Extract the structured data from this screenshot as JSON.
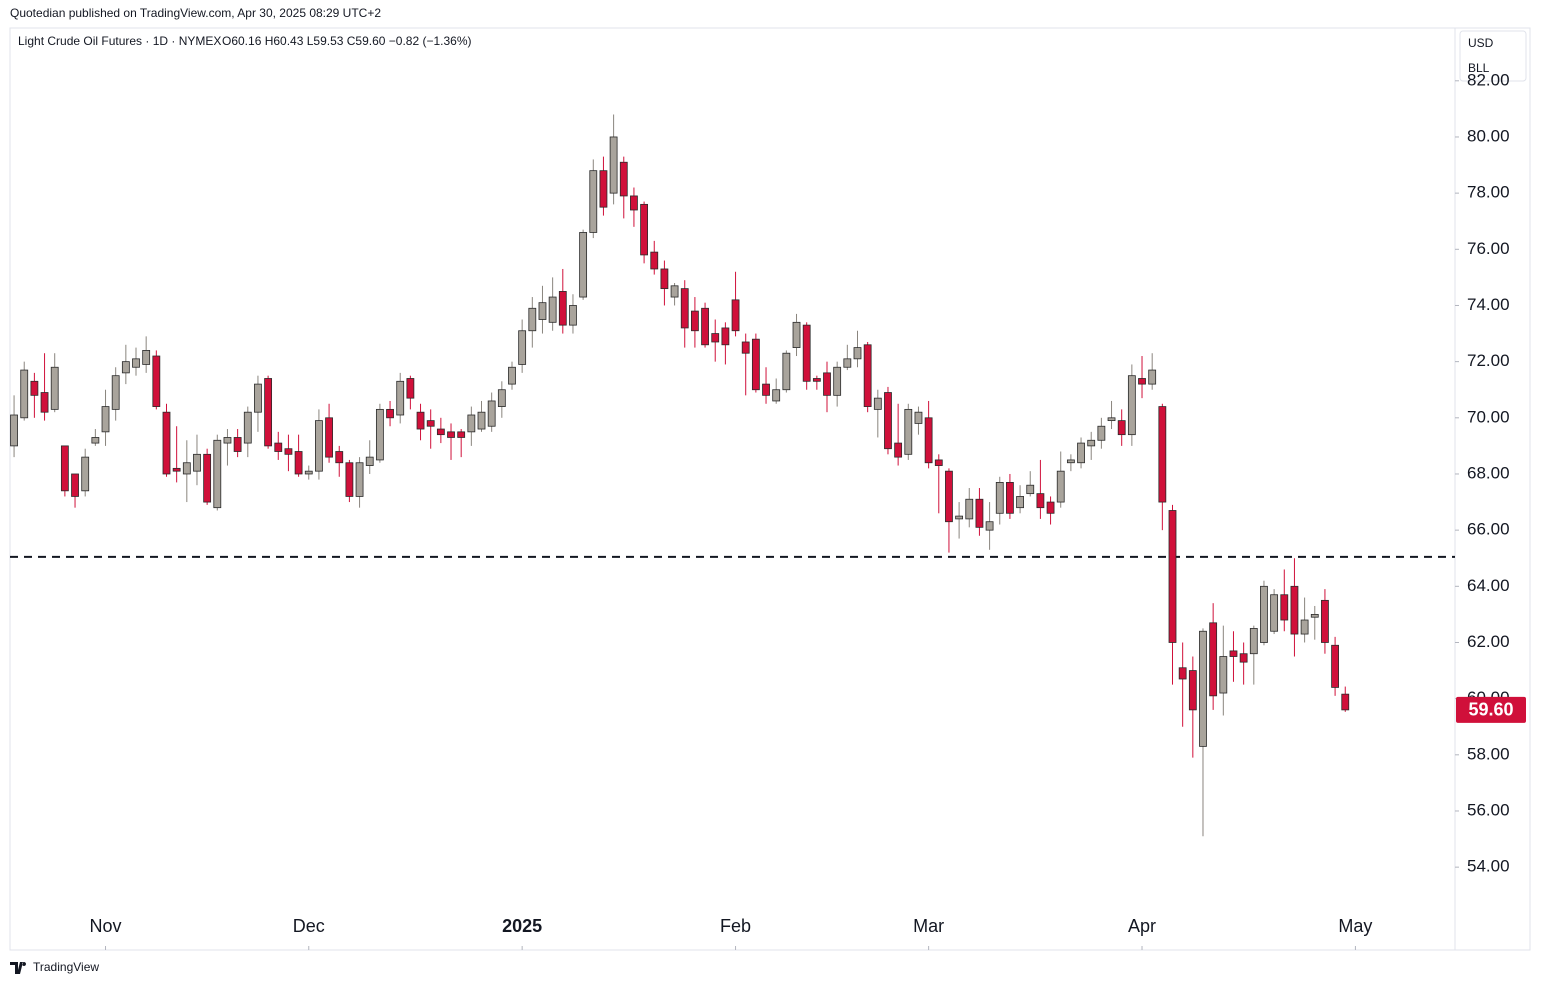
{
  "header": {
    "publisher": "Quotedian published on TradingView.com, Apr 30, 2025 08:29 UTC+2",
    "footer": "TradingView"
  },
  "chart_data": {
    "type": "candlestick",
    "title": "Light Crude Oil Futures · 1D · NYMEX",
    "ohlc_readout": "O60.16 H60.43 L59.53 C59.60 −0.82 (−1.36%)",
    "legend": [
      "USD",
      "BLL"
    ],
    "last_price_label": "59.60",
    "up_color": "#a9a49c",
    "down_color": "#d0103a",
    "border_color": "#2a2a2a",
    "xlim": [
      -0.4,
      141.8
    ],
    "xticks": [
      {
        "value": 9,
        "label": "Nov"
      },
      {
        "value": 29,
        "label": "Dec"
      },
      {
        "value": 50,
        "label": "2025"
      },
      {
        "value": 71,
        "label": "Feb"
      },
      {
        "value": 90,
        "label": "Mar"
      },
      {
        "value": 111,
        "label": "Apr"
      },
      {
        "value": 132,
        "label": "May"
      }
    ],
    "ylim": [
      51.05,
      83.88
    ],
    "yticks": [
      {
        "value": 54,
        "label": "54.00"
      },
      {
        "value": 56,
        "label": "56.00"
      },
      {
        "value": 58,
        "label": "58.00"
      },
      {
        "value": 60,
        "label": "60.00"
      },
      {
        "value": 62,
        "label": "62.00"
      },
      {
        "value": 64,
        "label": "64.00"
      },
      {
        "value": 66,
        "label": "66.00"
      },
      {
        "value": 68,
        "label": "68.00"
      },
      {
        "value": 70,
        "label": "70.00"
      },
      {
        "value": 72,
        "label": "72.00"
      },
      {
        "value": 74,
        "label": "74.00"
      },
      {
        "value": 76,
        "label": "76.00"
      },
      {
        "value": 78,
        "label": "78.00"
      },
      {
        "value": 80,
        "label": "80.00"
      },
      {
        "value": 82,
        "label": "82.00"
      }
    ],
    "reference_line": 65.05,
    "open": [
      69.0,
      70.0,
      71.3,
      70.9,
      70.3,
      69.0,
      68.0,
      67.4,
      69.1,
      69.5,
      70.3,
      71.6,
      71.8,
      71.9,
      72.2,
      70.2,
      68.2,
      68.0,
      68.1,
      68.7,
      66.8,
      69.1,
      69.3,
      69.1,
      70.2,
      71.4,
      69.1,
      68.9,
      68.8,
      68.0,
      68.1,
      70.0,
      68.8,
      68.4,
      67.2,
      68.3,
      68.5,
      70.3,
      70.1,
      71.4,
      70.2,
      69.9,
      69.6,
      69.5,
      69.5,
      69.5,
      69.6,
      69.7,
      70.4,
      71.2,
      71.9,
      73.1,
      73.5,
      73.4,
      74.5,
      73.3,
      74.3,
      76.6,
      78.8,
      78.0,
      79.1,
      77.9,
      77.6,
      75.9,
      75.3,
      74.3,
      74.6,
      73.8,
      73.9,
      73.0,
      73.2,
      74.2,
      72.7,
      72.8,
      71.2,
      70.6,
      71.0,
      72.5,
      73.3,
      71.4,
      71.6,
      70.8,
      71.8,
      72.1,
      72.6,
      70.3,
      70.9,
      69.1,
      68.7,
      69.8,
      70.0,
      68.5,
      68.1,
      66.4,
      66.4,
      67.1,
      66.0,
      66.6,
      67.7,
      66.8,
      67.3,
      67.3,
      67.0,
      67.0,
      68.4,
      68.4,
      69.0,
      69.2,
      69.9,
      69.9,
      69.4,
      71.4,
      71.2,
      70.4,
      66.7,
      61.1,
      61.0,
      58.3,
      62.7,
      60.2,
      61.7,
      61.6,
      61.6,
      62.0,
      62.4,
      63.7,
      64.0,
      62.3,
      62.9,
      63.5,
      61.9,
      60.16
    ],
    "high": [
      70.8,
      72.0,
      71.6,
      72.3,
      72.3,
      69.0,
      68.0,
      68.9,
      69.6,
      71.0,
      71.8,
      72.6,
      72.5,
      72.9,
      72.4,
      70.5,
      69.7,
      69.2,
      69.4,
      68.9,
      69.4,
      69.6,
      69.6,
      70.4,
      71.5,
      71.5,
      69.5,
      69.4,
      69.4,
      68.3,
      70.3,
      70.5,
      69.0,
      68.5,
      68.6,
      69.2,
      70.5,
      70.6,
      71.6,
      71.5,
      70.5,
      70.3,
      70.0,
      69.8,
      69.6,
      70.4,
      70.6,
      70.9,
      71.3,
      72.0,
      73.5,
      74.3,
      74.7,
      75.0,
      75.3,
      74.4,
      76.7,
      79.2,
      79.3,
      80.8,
      79.3,
      78.2,
      77.7,
      76.3,
      75.6,
      74.8,
      74.9,
      74.3,
      74.1,
      73.5,
      73.4,
      75.2,
      73.0,
      73.0,
      71.8,
      71.4,
      72.4,
      73.7,
      73.4,
      71.5,
      72.0,
      72.0,
      72.6,
      73.1,
      72.7,
      71.0,
      71.1,
      70.5,
      70.5,
      70.4,
      70.6,
      68.7,
      68.2,
      67.0,
      67.5,
      67.5,
      67.0,
      67.9,
      68.0,
      67.6,
      68.1,
      68.5,
      67.2,
      68.8,
      68.7,
      69.3,
      69.5,
      70.0,
      70.6,
      70.3,
      71.9,
      72.2,
      72.3,
      70.5,
      66.9,
      62.0,
      61.5,
      62.5,
      63.4,
      62.6,
      62.4,
      62.0,
      62.6,
      64.2,
      63.9,
      64.6,
      65.0,
      63.6,
      63.3,
      63.9,
      62.2,
      60.43
    ],
    "low": [
      68.6,
      69.9,
      70.0,
      69.9,
      70.2,
      67.2,
      66.8,
      67.2,
      69.0,
      69.0,
      69.9,
      71.2,
      71.5,
      71.6,
      70.3,
      67.9,
      67.7,
      67.0,
      67.6,
      66.9,
      66.7,
      68.3,
      68.6,
      68.6,
      69.5,
      68.9,
      68.5,
      68.1,
      67.9,
      67.8,
      67.8,
      68.4,
      67.9,
      67.0,
      66.8,
      68.0,
      68.4,
      69.7,
      69.8,
      70.3,
      69.2,
      68.9,
      69.1,
      68.5,
      68.6,
      69.0,
      69.5,
      69.5,
      70.0,
      71.0,
      71.6,
      72.5,
      73.0,
      73.1,
      73.0,
      73.0,
      74.2,
      76.4,
      77.2,
      77.6,
      77.1,
      76.8,
      75.5,
      75.1,
      74.0,
      74.0,
      72.5,
      72.5,
      72.5,
      72.0,
      71.9,
      72.9,
      70.8,
      70.9,
      70.5,
      70.5,
      70.9,
      72.2,
      71.0,
      71.0,
      70.2,
      70.4,
      71.7,
      71.8,
      70.2,
      69.3,
      68.7,
      68.3,
      68.5,
      69.4,
      68.2,
      66.6,
      65.2,
      65.7,
      66.1,
      65.8,
      65.3,
      66.2,
      66.4,
      66.6,
      67.2,
      66.4,
      66.2,
      66.8,
      68.1,
      68.2,
      68.5,
      68.9,
      69.6,
      69.0,
      69.0,
      70.7,
      71.0,
      66.0,
      60.5,
      59.0,
      57.9,
      55.1,
      59.6,
      59.4,
      60.6,
      60.5,
      60.5,
      61.9,
      62.3,
      62.4,
      61.5,
      62.0,
      62.1,
      61.6,
      60.1,
      59.53
    ],
    "close": [
      70.1,
      71.7,
      70.8,
      70.2,
      71.8,
      67.4,
      67.2,
      68.6,
      69.3,
      70.4,
      71.5,
      72.0,
      72.1,
      72.4,
      70.4,
      68.0,
      68.1,
      68.4,
      68.7,
      67.0,
      69.2,
      69.3,
      68.8,
      70.2,
      71.2,
      69.0,
      68.8,
      68.7,
      68.0,
      68.1,
      69.9,
      68.6,
      68.4,
      67.2,
      68.4,
      68.6,
      70.3,
      70.0,
      71.3,
      70.7,
      69.6,
      69.7,
      69.4,
      69.3,
      69.3,
      70.1,
      70.2,
      70.6,
      71.0,
      71.8,
      73.1,
      73.9,
      74.1,
      74.3,
      73.3,
      74.0,
      76.6,
      78.8,
      77.5,
      80.0,
      77.9,
      77.4,
      75.8,
      75.3,
      74.6,
      74.7,
      73.2,
      73.1,
      72.6,
      72.7,
      72.6,
      73.1,
      72.3,
      71.0,
      70.8,
      71.0,
      72.3,
      73.4,
      71.3,
      71.3,
      70.8,
      71.8,
      72.1,
      72.5,
      70.4,
      70.7,
      68.9,
      68.6,
      70.3,
      70.2,
      68.4,
      68.3,
      66.3,
      66.5,
      67.1,
      66.1,
      66.3,
      67.7,
      66.6,
      67.2,
      67.6,
      66.8,
      66.6,
      68.1,
      68.5,
      69.1,
      69.2,
      69.7,
      70.0,
      69.4,
      71.5,
      71.2,
      71.7,
      67.0,
      62.0,
      60.7,
      59.6,
      62.4,
      60.1,
      61.5,
      61.5,
      61.3,
      62.5,
      64.0,
      63.7,
      62.8,
      62.3,
      62.8,
      63.0,
      62.0,
      60.4,
      59.6
    ]
  }
}
